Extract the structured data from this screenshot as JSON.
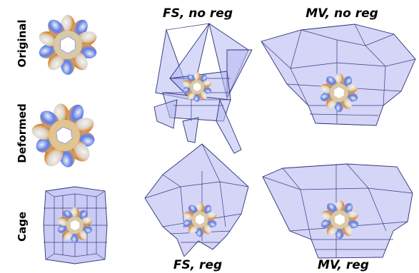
{
  "row_labels": {
    "original": "Original",
    "deformed": "Deformed",
    "cage": "Cage"
  },
  "column_labels": {
    "fs_no_reg": "FS, no  reg",
    "mv_no_reg": "MV, no  reg",
    "fs_reg": "FS, reg",
    "mv_reg": "MV, reg"
  },
  "colors": {
    "cage_fill": "#b7b9f2",
    "cage_edge": "#2e2f73",
    "flower_blue": "#4d6ff0",
    "flower_orange": "#e38a2c",
    "flower_white": "#f4f2ee"
  }
}
